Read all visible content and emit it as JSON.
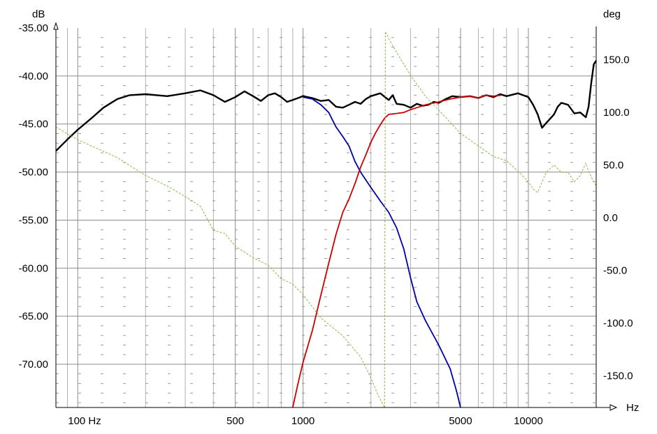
{
  "chart_data": {
    "type": "line",
    "left_axis": {
      "unit": "dB",
      "ylim": [
        -74.5,
        -35.0
      ],
      "ticks": [
        -35.0,
        -40.0,
        -45.0,
        -50.0,
        -55.0,
        -60.0,
        -65.0,
        -70.0
      ],
      "tick_labels": [
        "-35.00",
        "-40.00",
        "-45.00",
        "-50.00",
        "-55.00",
        "-60.00",
        "-65.00",
        "-70.00"
      ]
    },
    "right_axis": {
      "unit": "deg",
      "ylim": [
        -180,
        180
      ],
      "ticks": [
        150,
        100,
        50,
        0,
        -50,
        -100,
        -150
      ],
      "tick_labels": [
        "150.0",
        "100.0",
        "50.0",
        "0.0",
        "-50.0",
        "-100.0",
        "-150.0"
      ]
    },
    "x_axis": {
      "unit": "Hz",
      "scale": "log",
      "xlim": [
        80,
        20000
      ],
      "ticks": [
        100,
        500,
        1000,
        5000,
        10000
      ],
      "tick_labels": [
        "100 Hz",
        "500",
        "1000",
        "5000",
        "10000"
      ]
    },
    "grid": true,
    "series": [
      {
        "color": "#000000",
        "axis": "left",
        "style": "solid",
        "points": [
          [
            80,
            -47.8
          ],
          [
            90,
            -46.6
          ],
          [
            100,
            -45.6
          ],
          [
            115,
            -44.4
          ],
          [
            130,
            -43.3
          ],
          [
            150,
            -42.4
          ],
          [
            170,
            -42.0
          ],
          [
            200,
            -41.9
          ],
          [
            250,
            -42.1
          ],
          [
            300,
            -41.8
          ],
          [
            350,
            -41.5
          ],
          [
            400,
            -42.0
          ],
          [
            450,
            -42.7
          ],
          [
            500,
            -42.2
          ],
          [
            550,
            -41.6
          ],
          [
            600,
            -42.1
          ],
          [
            650,
            -42.6
          ],
          [
            700,
            -42.0
          ],
          [
            750,
            -41.8
          ],
          [
            800,
            -42.2
          ],
          [
            850,
            -42.7
          ],
          [
            900,
            -42.5
          ],
          [
            950,
            -42.3
          ],
          [
            1000,
            -42.1
          ],
          [
            1100,
            -42.3
          ],
          [
            1200,
            -42.6
          ],
          [
            1300,
            -42.5
          ],
          [
            1400,
            -43.2
          ],
          [
            1500,
            -43.3
          ],
          [
            1600,
            -43.0
          ],
          [
            1700,
            -42.7
          ],
          [
            1800,
            -42.9
          ],
          [
            1900,
            -42.4
          ],
          [
            2000,
            -42.1
          ],
          [
            2200,
            -41.8
          ],
          [
            2400,
            -42.5
          ],
          [
            2500,
            -42.0
          ],
          [
            2600,
            -42.9
          ],
          [
            2800,
            -43.0
          ],
          [
            3000,
            -43.3
          ],
          [
            3200,
            -42.9
          ],
          [
            3400,
            -43.1
          ],
          [
            3600,
            -43.0
          ],
          [
            3800,
            -42.7
          ],
          [
            4000,
            -42.8
          ],
          [
            4300,
            -42.4
          ],
          [
            4600,
            -42.1
          ],
          [
            5000,
            -42.2
          ],
          [
            5500,
            -42.1
          ],
          [
            6000,
            -42.3
          ],
          [
            6500,
            -42.0
          ],
          [
            7000,
            -42.2
          ],
          [
            7500,
            -41.9
          ],
          [
            8000,
            -42.1
          ],
          [
            9000,
            -41.8
          ],
          [
            10000,
            -42.2
          ],
          [
            10500,
            -43.0
          ],
          [
            11000,
            -44.0
          ],
          [
            11500,
            -45.4
          ],
          [
            12000,
            -44.9
          ],
          [
            13000,
            -44.0
          ],
          [
            13500,
            -43.2
          ],
          [
            14000,
            -42.8
          ],
          [
            15000,
            -43.0
          ],
          [
            16000,
            -43.9
          ],
          [
            17000,
            -43.8
          ],
          [
            18000,
            -44.3
          ],
          [
            18500,
            -43.2
          ],
          [
            19000,
            -40.8
          ],
          [
            19500,
            -38.8
          ],
          [
            20000,
            -38.4
          ]
        ]
      },
      {
        "color": "#0000aa",
        "axis": "left",
        "style": "solid",
        "points": [
          [
            1000,
            -42.2
          ],
          [
            1100,
            -42.4
          ],
          [
            1200,
            -43.0
          ],
          [
            1300,
            -43.8
          ],
          [
            1400,
            -45.3
          ],
          [
            1500,
            -46.3
          ],
          [
            1600,
            -47.3
          ],
          [
            1700,
            -48.9
          ],
          [
            1800,
            -50.0
          ],
          [
            2000,
            -51.6
          ],
          [
            2200,
            -53.0
          ],
          [
            2400,
            -54.2
          ],
          [
            2600,
            -55.8
          ],
          [
            2800,
            -58.0
          ],
          [
            3000,
            -61.0
          ],
          [
            3200,
            -63.5
          ],
          [
            3500,
            -65.5
          ],
          [
            4000,
            -68.0
          ],
          [
            4500,
            -70.5
          ],
          [
            4800,
            -72.8
          ],
          [
            5000,
            -74.5
          ]
        ]
      },
      {
        "color": "#cc0000",
        "axis": "left",
        "style": "solid",
        "points": [
          [
            900,
            -74.5
          ],
          [
            950,
            -72.0
          ],
          [
            1000,
            -69.8
          ],
          [
            1100,
            -66.5
          ],
          [
            1200,
            -62.8
          ],
          [
            1300,
            -59.5
          ],
          [
            1400,
            -56.5
          ],
          [
            1500,
            -54.2
          ],
          [
            1600,
            -52.8
          ],
          [
            1700,
            -51.2
          ],
          [
            1800,
            -49.5
          ],
          [
            1900,
            -48.2
          ],
          [
            2000,
            -46.9
          ],
          [
            2100,
            -45.9
          ],
          [
            2200,
            -45.1
          ],
          [
            2300,
            -44.4
          ],
          [
            2400,
            -44.0
          ],
          [
            2600,
            -43.9
          ],
          [
            2800,
            -43.8
          ],
          [
            3000,
            -43.5
          ],
          [
            3200,
            -43.3
          ],
          [
            3500,
            -43.0
          ],
          [
            4000,
            -42.7
          ],
          [
            4500,
            -42.4
          ],
          [
            5000,
            -42.2
          ],
          [
            5500,
            -42.1
          ],
          [
            6000,
            -42.3
          ],
          [
            6500,
            -42.0
          ],
          [
            7000,
            -42.1
          ],
          [
            7600,
            -42.0
          ]
        ]
      },
      {
        "color": "#88bb44",
        "axis": "right",
        "style": "dashed",
        "points": [
          [
            80,
            86
          ],
          [
            100,
            74
          ],
          [
            150,
            57
          ],
          [
            200,
            40
          ],
          [
            250,
            30
          ],
          [
            300,
            20
          ],
          [
            350,
            11
          ],
          [
            400,
            -12
          ],
          [
            450,
            -15
          ],
          [
            500,
            -27
          ],
          [
            600,
            -38
          ],
          [
            700,
            -45
          ],
          [
            800,
            -58
          ],
          [
            900,
            -63
          ],
          [
            1000,
            -73
          ],
          [
            1200,
            -95
          ],
          [
            1500,
            -112
          ],
          [
            1800,
            -132
          ],
          [
            2000,
            -152
          ],
          [
            2150,
            -168
          ],
          [
            2300,
            -180
          ],
          [
            2320,
            176
          ],
          [
            2500,
            163
          ],
          [
            3000,
            135
          ],
          [
            3500,
            115
          ],
          [
            4000,
            102
          ],
          [
            5000,
            80
          ],
          [
            6000,
            68
          ],
          [
            7000,
            58
          ],
          [
            8000,
            54
          ],
          [
            9000,
            44
          ],
          [
            10000,
            34
          ],
          [
            10500,
            27
          ],
          [
            11000,
            24
          ],
          [
            12000,
            43
          ],
          [
            13000,
            50
          ],
          [
            14000,
            43
          ],
          [
            15000,
            43
          ],
          [
            16000,
            34
          ],
          [
            17000,
            40
          ],
          [
            18000,
            52
          ],
          [
            18500,
            44
          ],
          [
            19500,
            34
          ],
          [
            20000,
            30
          ]
        ]
      }
    ]
  }
}
